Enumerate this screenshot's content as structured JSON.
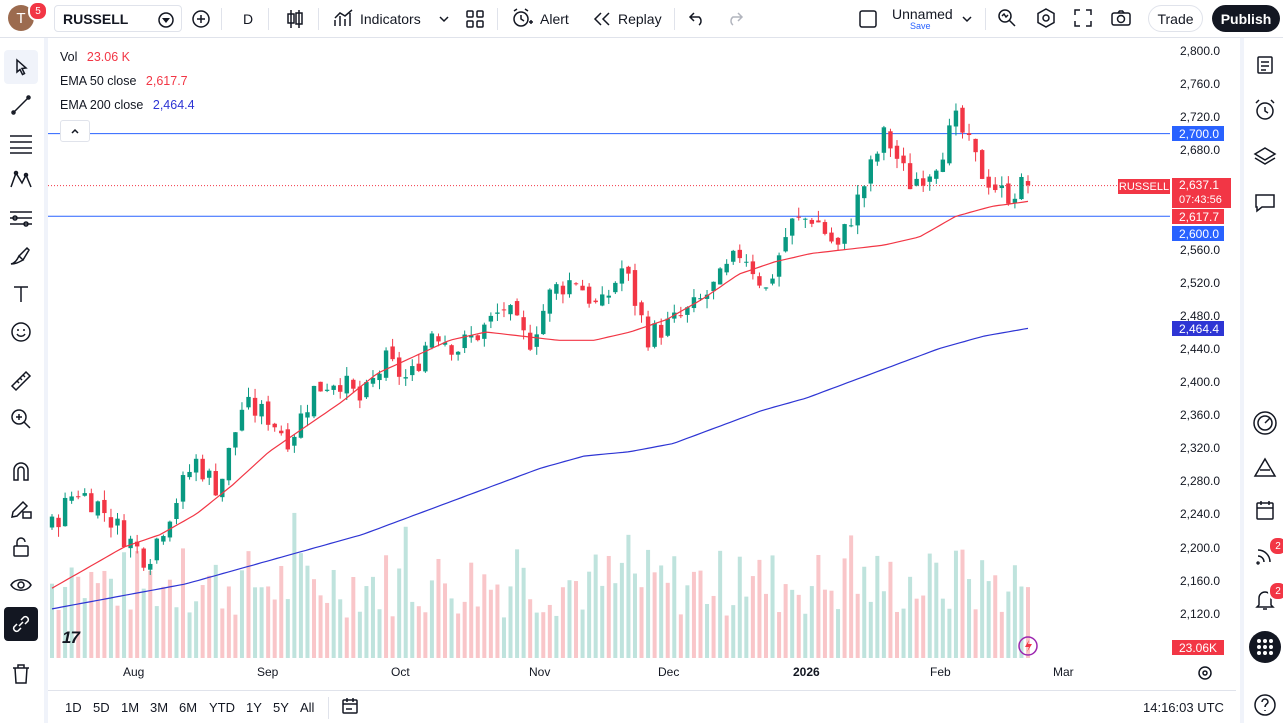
{
  "header": {
    "avatar_letter": "T",
    "avatar_badge": "5",
    "symbol": "RUSSELL",
    "interval": "D",
    "indicators_label": "Indicators",
    "alert_label": "Alert",
    "replay_label": "Replay",
    "layout_name": "Unnamed",
    "layout_save": "Save",
    "trade_label": "Trade",
    "publish_label": "Publish"
  },
  "legend": {
    "vol_label": "Vol",
    "vol_value": "23.06 K",
    "ema50_label": "EMA 50 close",
    "ema50_value": "2,617.7",
    "ema200_label": "EMA 200 close",
    "ema200_value": "2,464.4"
  },
  "price_axis": {
    "labels": [
      "2,800.0",
      "2,760.0",
      "2,720.0",
      "2,680.0",
      "2,640.0",
      "2,600.0",
      "2,560.0",
      "2,520.0",
      "2,480.0",
      "2,440.0",
      "2,400.0",
      "2,360.0",
      "2,320.0",
      "2,280.0",
      "2,240.0",
      "2,200.0",
      "2,160.0",
      "2,120.0"
    ],
    "tag_hline_top": "2,700.0",
    "tag_price": "2,637.1",
    "tag_countdown": "07:43:56",
    "tag_ema50": "2,617.7",
    "tag_hline_bottom": "2,600.0",
    "tag_ema200": "2,464.4",
    "tag_volume": "23.06K",
    "symbol_tag": "RUSSELL"
  },
  "time_axis": {
    "labels": [
      "Aug",
      "Sep",
      "Oct",
      "Nov",
      "Dec",
      "2026",
      "Feb",
      "Mar"
    ]
  },
  "bottom": {
    "ranges": [
      "1D",
      "5D",
      "1M",
      "3M",
      "6M",
      "YTD",
      "1Y",
      "5Y",
      "All"
    ],
    "clock": "14:16:03 UTC"
  },
  "right_sidebar": {
    "badge_streams": "2",
    "badge_notifications": "2"
  },
  "colors": {
    "up": "#089981",
    "down": "#f23645",
    "ema50": "#f23645",
    "ema200": "#2e35d4",
    "hline": "#2962ff",
    "vol_up": "#bfe3dd",
    "vol_down": "#f9c6c9"
  },
  "chart_data": {
    "type": "candlestick",
    "y_range": [
      2100,
      2810
    ],
    "horizontal_lines": [
      2700,
      2600
    ],
    "current_price": 2637.1,
    "ema50_last": 2617.7,
    "ema200_last": 2464.4,
    "close_path": [
      2225,
      2270,
      2250,
      2215,
      2185,
      2245,
      2305,
      2270,
      2370,
      2360,
      2330,
      2390,
      2405,
      2375,
      2425,
      2400,
      2465,
      2440,
      2460,
      2490,
      2445,
      2510,
      2525,
      2485,
      2540,
      2455,
      2470,
      2490,
      2520,
      2560,
      2510,
      2590,
      2600,
      2560,
      2630,
      2700,
      2640,
      2660,
      2715,
      2655,
      2625,
      2640
    ],
    "ema50_path": [
      2150,
      2175,
      2200,
      2215,
      2240,
      2275,
      2315,
      2345,
      2375,
      2410,
      2430,
      2450,
      2460,
      2455,
      2450,
      2450,
      2460,
      2475,
      2500,
      2530,
      2545,
      2555,
      2560,
      2565,
      2575,
      2600,
      2612,
      2618
    ],
    "ema200_path": [
      2125,
      2135,
      2145,
      2155,
      2170,
      2185,
      2200,
      2215,
      2235,
      2255,
      2275,
      2295,
      2310,
      2315,
      2325,
      2345,
      2365,
      2380,
      2400,
      2420,
      2440,
      2455,
      2464.4
    ]
  }
}
